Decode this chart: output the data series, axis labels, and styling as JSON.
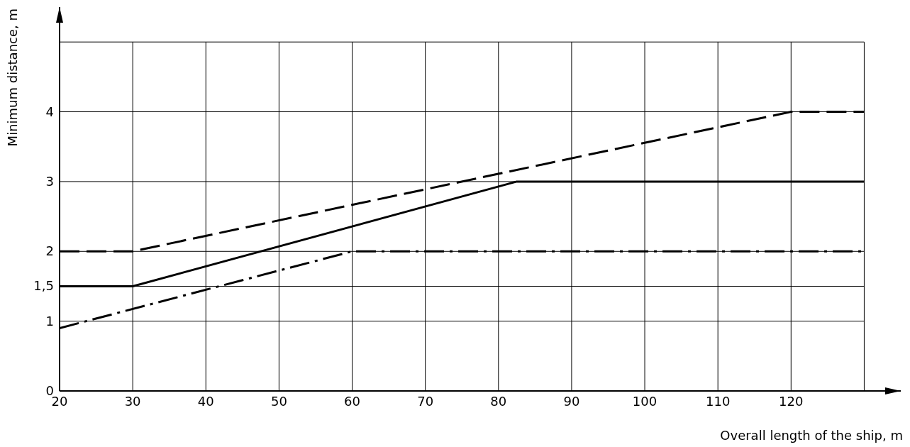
{
  "chart_data": {
    "type": "line",
    "xlabel": "Overall length of the ship, m",
    "ylabel": "Minimum distance, m",
    "xlim": [
      20,
      135
    ],
    "ylim": [
      0,
      5.5
    ],
    "xticks": [
      20,
      30,
      40,
      50,
      60,
      70,
      80,
      90,
      100,
      110,
      120,
      {
        "value": 130,
        "label": null
      }
    ],
    "yticks": [
      0,
      1,
      {
        "value": 1.5,
        "label": "1,5"
      },
      2,
      3,
      4,
      {
        "value": 5,
        "label": null
      }
    ],
    "grid": true,
    "legend": false,
    "marker": "none",
    "series": [
      {
        "color": "#000000",
        "line_style": "dashed",
        "x": [
          20,
          30,
          120,
          130
        ],
        "values": [
          2,
          2,
          4,
          4
        ]
      },
      {
        "color": "#000000",
        "line_style": "solid",
        "x": [
          20,
          30,
          82.5,
          130
        ],
        "values": [
          1.5,
          1.5,
          3,
          3
        ]
      },
      {
        "color": "#000000",
        "line_style": "dashdot",
        "x": [
          20,
          60,
          130
        ],
        "values": [
          0.9,
          2,
          2
        ]
      }
    ]
  }
}
